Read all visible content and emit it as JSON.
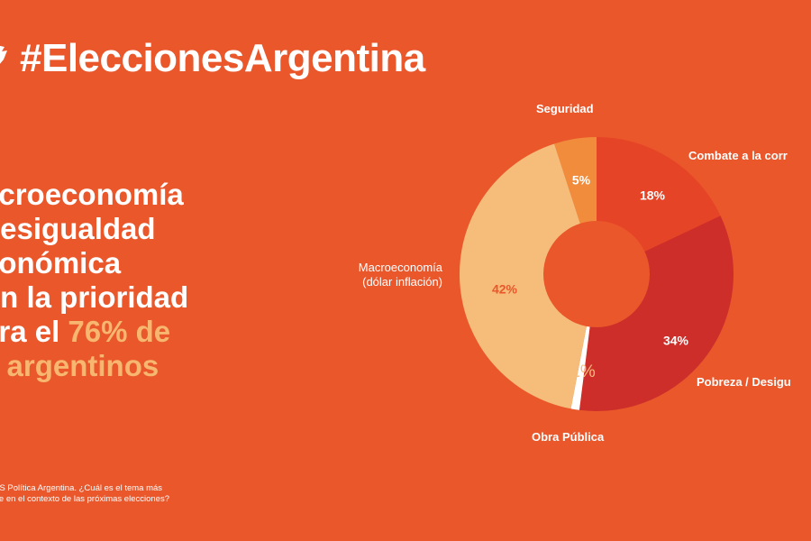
{
  "header": {
    "hashtag": "#EleccionesArgentina",
    "icon": "twitter-bird-icon"
  },
  "headline": {
    "lines": [
      "acroeconomía",
      "desigualdad",
      "conómica",
      "on la prioridad"
    ],
    "last_line_prefix": "ara el ",
    "last_line_highlight": "76% de",
    "final_line": "s argentinos"
  },
  "source": {
    "line1": "TIS Política Argentina. ¿Cuál es el tema más",
    "line2": "nte en el contexto de las próximas elecciones?"
  },
  "colors": {
    "background": "#e9572b",
    "highlight": "#f7b770"
  },
  "chart_data": {
    "type": "pie",
    "donut": true,
    "categories": [
      "Seguridad",
      "Combate a la corrupción",
      "Pobreza / Desigualdad",
      "Obra Pública",
      "Macroeconomía (dólar inflación)"
    ],
    "values": [
      5,
      18,
      34,
      1,
      42
    ],
    "value_labels": [
      "5%",
      "18%",
      "34%",
      "1%",
      "42%"
    ],
    "colors": [
      "#f08c3c",
      "#e64427",
      "#cd2e2a",
      "#ffffff",
      "#f6bd7a"
    ],
    "label_text": {
      "seguridad": "Seguridad",
      "corrupcion": "Combate a la corr",
      "pobreza": "Pobreza / Desigu",
      "obra": "Obra Pública",
      "macro_1": "Macroeconomía",
      "macro_2": "(dólar inflación)"
    }
  }
}
